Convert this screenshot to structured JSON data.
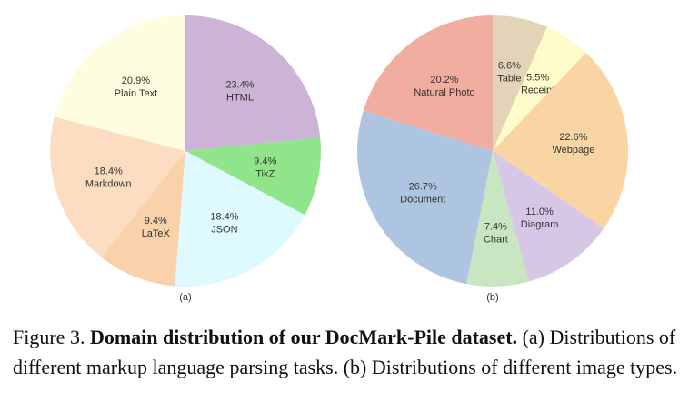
{
  "chart_data": [
    {
      "type": "pie",
      "panel_label": "(a)",
      "slices": [
        {
          "label": "HTML",
          "value": 23.4,
          "value_text": "23.4%",
          "color": "#cdb3d5"
        },
        {
          "label": "TikZ",
          "value": 9.4,
          "value_text": "9.4%",
          "color": "#90e58a"
        },
        {
          "label": "JSON",
          "value": 18.4,
          "value_text": "18.4%",
          "color": "#dffafe"
        },
        {
          "label": "LaTeX",
          "value": 9.4,
          "value_text": "9.4%",
          "color": "#f9d2ac"
        },
        {
          "label": "Markdown",
          "value": 18.4,
          "value_text": "18.4%",
          "color": "#fdddc1"
        },
        {
          "label": "Plain Text",
          "value": 20.9,
          "value_text": "20.9%",
          "color": "#fffde0"
        }
      ]
    },
    {
      "type": "pie",
      "panel_label": "(b)",
      "slices": [
        {
          "label": "Table",
          "value": 6.6,
          "value_text": "6.6%",
          "color": "#e2d3b9"
        },
        {
          "label": "Receipt",
          "value": 5.5,
          "value_text": "5.5%",
          "color": "#fefccb"
        },
        {
          "label": "Webpage",
          "value": 22.6,
          "value_text": "22.6%",
          "color": "#f9d5a4"
        },
        {
          "label": "Diagram",
          "value": 11.0,
          "value_text": "11.0%",
          "color": "#d7c7e6"
        },
        {
          "label": "Chart",
          "value": 7.4,
          "value_text": "7.4%",
          "color": "#c8e6c2"
        },
        {
          "label": "Document",
          "value": 26.7,
          "value_text": "26.7%",
          "color": "#adc5e0"
        },
        {
          "label": "Natural Photo",
          "value": 20.2,
          "value_text": "20.2%",
          "color": "#f2ada1"
        }
      ]
    }
  ],
  "caption": {
    "figure_number": "Figure 3.",
    "title": "Domain distribution of our DocMark-Pile dataset.",
    "body": "(a) Distributions of different markup language parsing tasks. (b) Distributions of different image types."
  }
}
